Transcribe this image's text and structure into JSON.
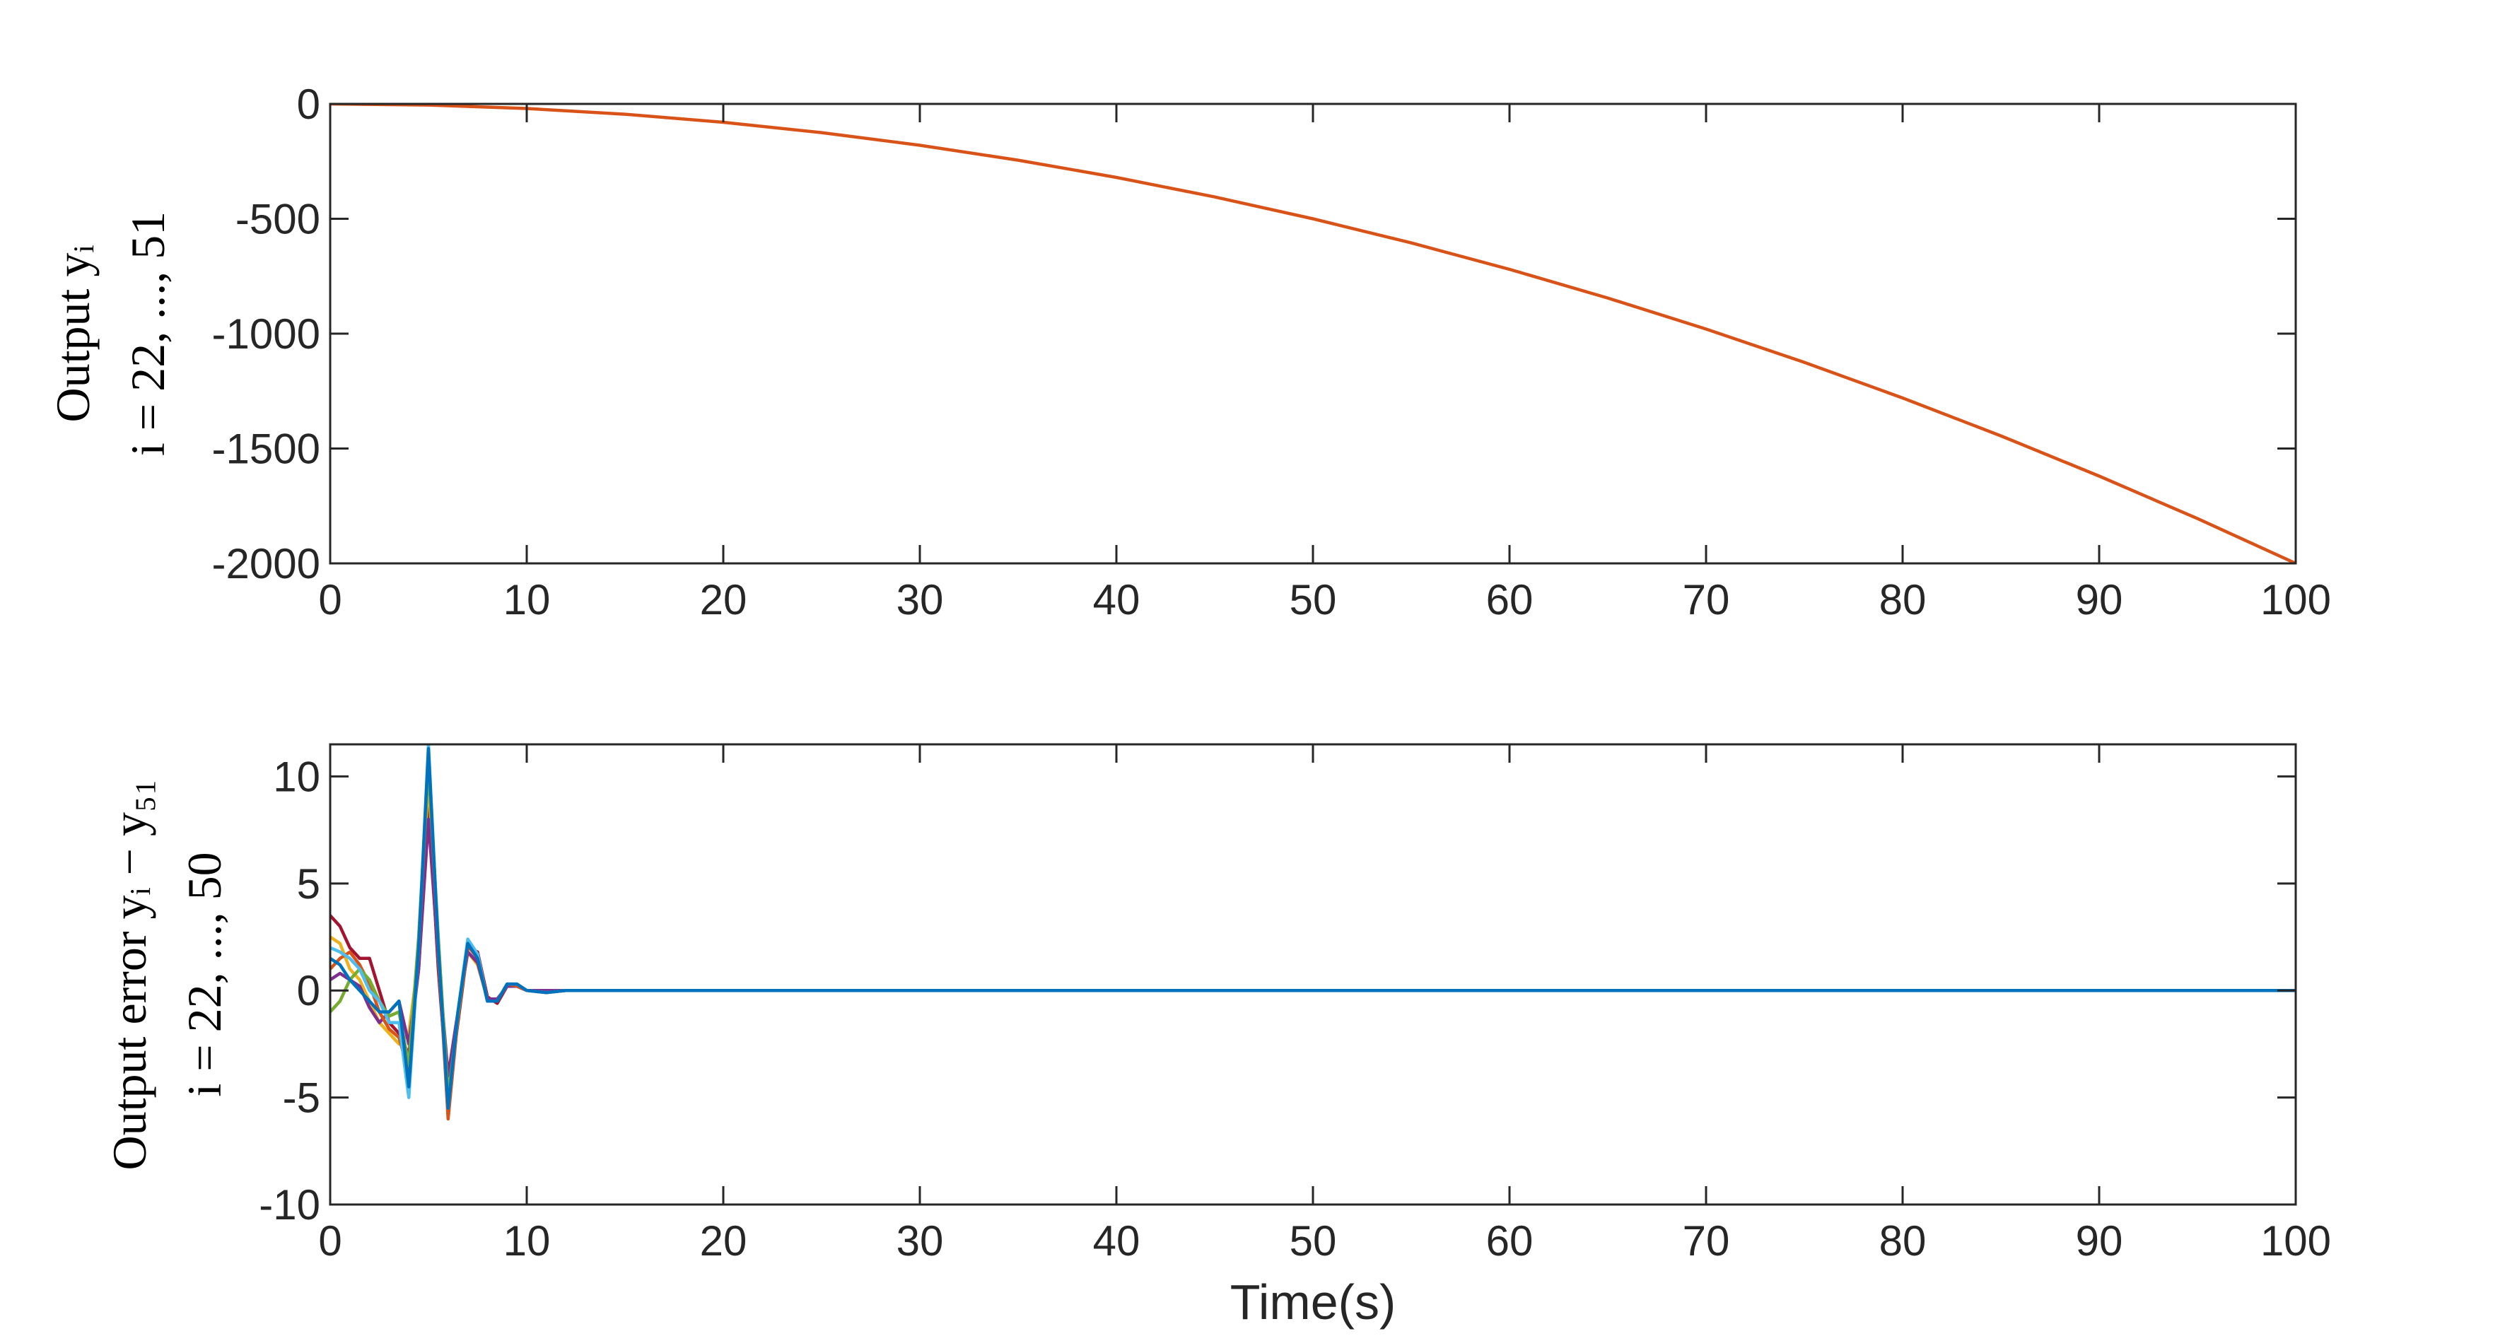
{
  "chart_data": [
    {
      "type": "line",
      "x": [
        0,
        5,
        10,
        15,
        20,
        25,
        30,
        35,
        40,
        45,
        50,
        55,
        60,
        65,
        70,
        75,
        80,
        85,
        90,
        95,
        100
      ],
      "series": [
        {
          "color": "#d95319",
          "values": [
            0,
            -5,
            -20,
            -45,
            -80,
            -125,
            -180,
            -245,
            -320,
            -405,
            -500,
            -605,
            -720,
            -845,
            -980,
            -1125,
            -1280,
            -1445,
            -1620,
            -1805,
            -2000
          ]
        }
      ],
      "xlim": [
        0,
        100
      ],
      "ylim": [
        -2000,
        0
      ],
      "xticks": [
        0,
        10,
        20,
        30,
        40,
        50,
        60,
        70,
        80,
        90,
        100
      ],
      "yticks": [
        -2000,
        -1500,
        -1000,
        -500,
        0
      ],
      "ylabel": [
        "Output yᵢ",
        "i = 22, ..., 51"
      ]
    },
    {
      "type": "line",
      "x": [
        0,
        0.5,
        1,
        1.5,
        2,
        2.5,
        3,
        3.5,
        4,
        4.5,
        5,
        5.5,
        6,
        6.5,
        7,
        7.5,
        8,
        8.5,
        9,
        9.5,
        10,
        11,
        12,
        13,
        14,
        15,
        100
      ],
      "series": [
        {
          "color": "#a2142f",
          "values": [
            3.5,
            3,
            2,
            1.5,
            1.5,
            0,
            -1.5,
            -2,
            -3,
            1,
            9,
            1,
            -5,
            -1.5,
            2,
            1.8,
            -0.3,
            -0.6,
            0.2,
            0.3,
            0,
            -0.1,
            0,
            0,
            0,
            0,
            0
          ]
        },
        {
          "color": "#edb120",
          "values": [
            2.5,
            2.2,
            1,
            0.5,
            -0.5,
            -1.5,
            -2,
            -2.5,
            -2,
            1.5,
            10,
            1.5,
            -4.5,
            -1,
            1.8,
            1.2,
            -0.4,
            -0.4,
            0.2,
            0.2,
            0,
            0,
            0,
            0,
            0,
            0,
            0
          ]
        },
        {
          "color": "#7e2f8e",
          "values": [
            0.5,
            0.8,
            0.5,
            0.2,
            -0.8,
            -1.5,
            -1,
            -0.5,
            -2.5,
            1,
            8,
            1.5,
            -4,
            -1,
            1.8,
            1.3,
            -0.4,
            -0.4,
            0.2,
            0.2,
            0,
            0,
            0,
            0,
            0,
            0,
            0
          ]
        },
        {
          "color": "#d95319",
          "values": [
            1,
            1.5,
            1.8,
            1.2,
            0.3,
            -1,
            -1.8,
            -2.2,
            -3.8,
            1.8,
            10.8,
            1.8,
            -6,
            -1.3,
            2.1,
            1.5,
            -0.5,
            -0.5,
            0.3,
            0.2,
            0,
            -0.1,
            0,
            0,
            0,
            0,
            0
          ]
        },
        {
          "color": "#77ac30",
          "values": [
            -1,
            -0.5,
            0.5,
            1,
            0.5,
            -0.5,
            -1.2,
            -1,
            -3.5,
            2.5,
            10.5,
            2.5,
            -5,
            -1.2,
            2.3,
            1.6,
            -0.5,
            -0.5,
            0.3,
            0.3,
            0,
            -0.1,
            0,
            0,
            0,
            0,
            0
          ]
        },
        {
          "color": "#4dbeee",
          "values": [
            2,
            1.8,
            1.5,
            1,
            0,
            -0.5,
            -1.5,
            -1.5,
            -5,
            2,
            11.5,
            2,
            -5.5,
            -1,
            2.4,
            1.7,
            -0.5,
            -0.5,
            0.3,
            0.3,
            0,
            -0.1,
            0,
            0,
            0,
            0,
            0
          ]
        },
        {
          "color": "#0072bd",
          "values": [
            1.5,
            1.2,
            0.5,
            0,
            -0.5,
            -1,
            -1,
            -0.5,
            -4.5,
            2,
            11.3,
            2,
            -5.5,
            -1,
            2.2,
            1.5,
            -0.5,
            -0.5,
            0.3,
            0.3,
            0,
            -0.1,
            0,
            0,
            0,
            0,
            0
          ]
        }
      ],
      "xlim": [
        0,
        100
      ],
      "ylim": [
        -10,
        11.5
      ],
      "xticks": [
        0,
        10,
        20,
        30,
        40,
        50,
        60,
        70,
        80,
        90,
        100
      ],
      "yticks": [
        -10,
        -5,
        0,
        5,
        10
      ],
      "ylabel": [
        "Output error yᵢ − y₅₁",
        "i = 22, ..., 50"
      ],
      "xlabel": "Time(s)"
    }
  ]
}
